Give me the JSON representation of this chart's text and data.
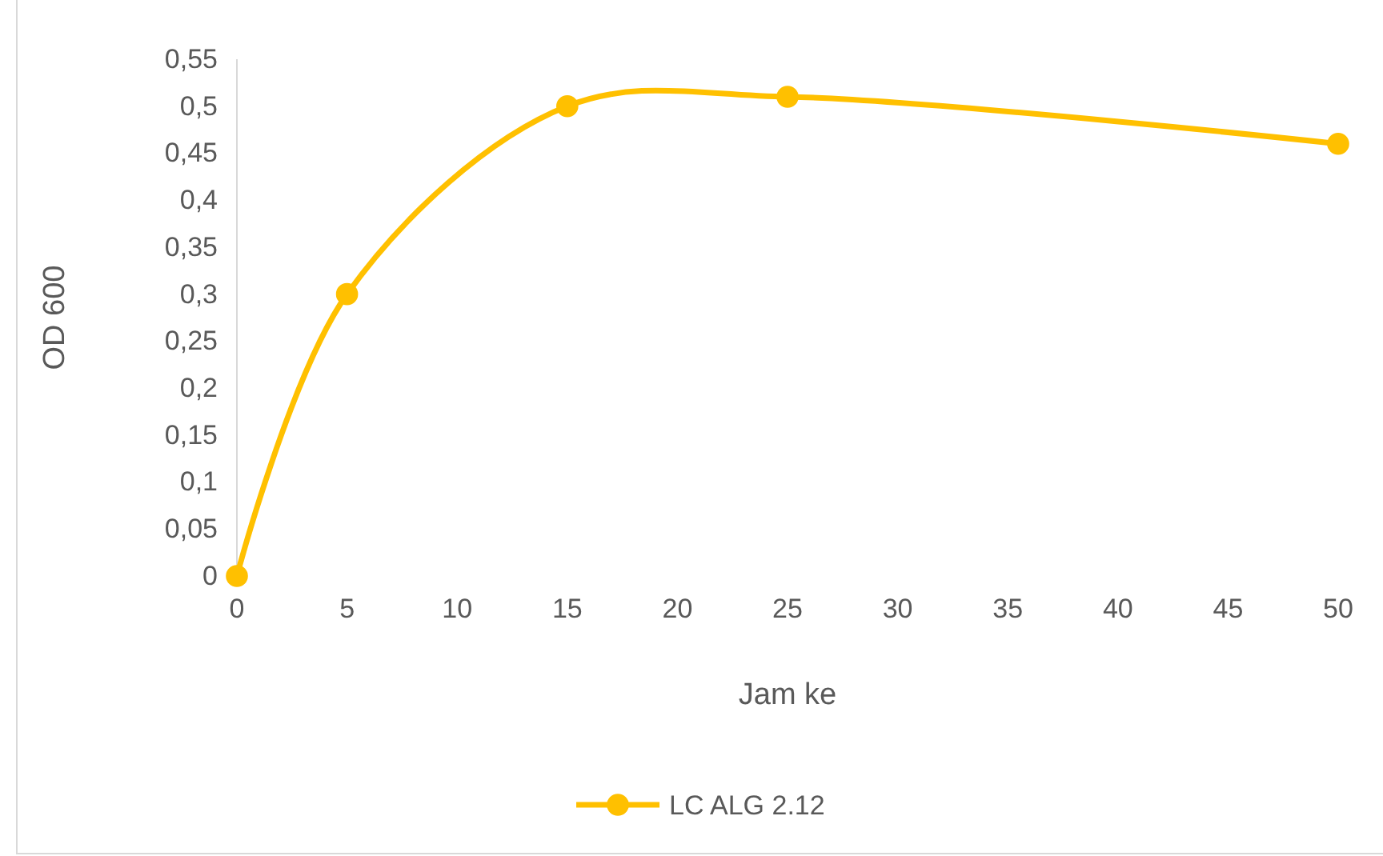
{
  "chart_data": {
    "type": "line",
    "xlabel": "Jam ke",
    "ylabel": "OD 600",
    "x": [
      0,
      5,
      15,
      25,
      50
    ],
    "series": [
      {
        "name": "LC ALG 2.12",
        "color": "#ffc000",
        "values": [
          0,
          0.3,
          0.5,
          0.51,
          0.46
        ]
      }
    ],
    "xlim": [
      0,
      50
    ],
    "xticks": [
      0,
      5,
      10,
      15,
      20,
      25,
      30,
      35,
      40,
      45,
      50
    ],
    "ylim": [
      0,
      0.55
    ],
    "yticks": [
      {
        "value": 0,
        "label": "0"
      },
      {
        "value": 0.05,
        "label": "0,05"
      },
      {
        "value": 0.1,
        "label": "0,1"
      },
      {
        "value": 0.15,
        "label": "0,15"
      },
      {
        "value": 0.2,
        "label": "0,2"
      },
      {
        "value": 0.25,
        "label": "0,25"
      },
      {
        "value": 0.3,
        "label": "0,3"
      },
      {
        "value": 0.35,
        "label": "0,35"
      },
      {
        "value": 0.4,
        "label": "0,4"
      },
      {
        "value": 0.45,
        "label": "0,45"
      },
      {
        "value": 0.5,
        "label": "0,5"
      },
      {
        "value": 0.55,
        "label": "0,55"
      }
    ],
    "grid": false,
    "legend": "bottom",
    "marker": "circle",
    "line_style": "solid"
  }
}
